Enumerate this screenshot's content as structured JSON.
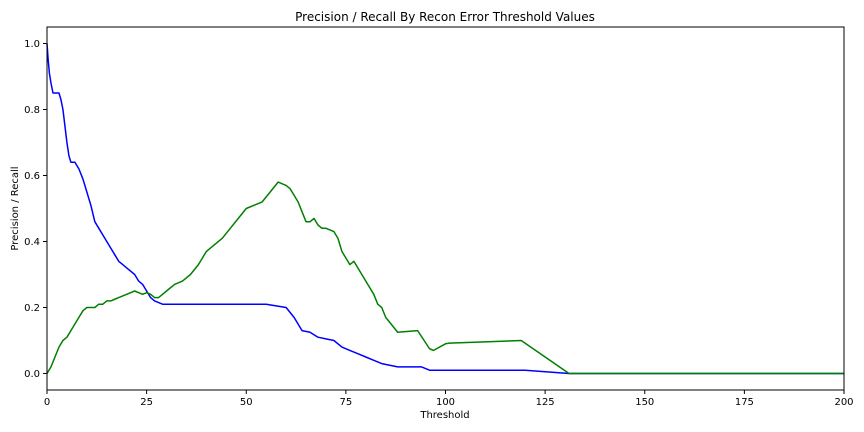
{
  "chart_data": {
    "type": "line",
    "title": "Precision / Recall  By Recon Error Threshold Values",
    "xlabel": "Threshold",
    "ylabel": "Precision / Recall",
    "xlim": [
      0,
      200
    ],
    "ylim": [
      -0.05,
      1.05
    ],
    "xticks": [
      0,
      25,
      50,
      75,
      100,
      125,
      150,
      175,
      200
    ],
    "yticks": [
      0.0,
      0.2,
      0.4,
      0.6,
      0.8,
      1.0
    ],
    "grid": false,
    "legend": "none",
    "series": [
      {
        "color": "#0000ff",
        "x": [
          0,
          0.3,
          0.6,
          1,
          1.5,
          2,
          3,
          3.5,
          4,
          4.5,
          5,
          5.5,
          6,
          7,
          8,
          9,
          10,
          11,
          12,
          13,
          14,
          15,
          16,
          17,
          18,
          19,
          20,
          21,
          22,
          23,
          24,
          25,
          26,
          27,
          28,
          29,
          30,
          40,
          50,
          55,
          60,
          62,
          64,
          66,
          68,
          70,
          72,
          74,
          76,
          78,
          80,
          82,
          84,
          88,
          94,
          96,
          100,
          120,
          131,
          200
        ],
        "y": [
          1.0,
          0.95,
          0.91,
          0.88,
          0.85,
          0.85,
          0.85,
          0.83,
          0.8,
          0.75,
          0.7,
          0.66,
          0.64,
          0.64,
          0.62,
          0.59,
          0.55,
          0.51,
          0.46,
          0.44,
          0.42,
          0.4,
          0.38,
          0.36,
          0.34,
          0.33,
          0.32,
          0.31,
          0.3,
          0.28,
          0.27,
          0.25,
          0.23,
          0.22,
          0.215,
          0.21,
          0.21,
          0.21,
          0.21,
          0.21,
          0.2,
          0.17,
          0.13,
          0.125,
          0.11,
          0.105,
          0.1,
          0.08,
          0.07,
          0.06,
          0.05,
          0.04,
          0.03,
          0.02,
          0.02,
          0.01,
          0.01,
          0.01,
          0.0,
          0.0
        ]
      },
      {
        "color": "#008000",
        "x": [
          0,
          1,
          2,
          3,
          4,
          5,
          6,
          7,
          8,
          9,
          10,
          11,
          12,
          13,
          14,
          15,
          16,
          17,
          18,
          19,
          20,
          21,
          22,
          23,
          24,
          25,
          26,
          27,
          28,
          29,
          30,
          32,
          34,
          36,
          38,
          40,
          42,
          44,
          46,
          48,
          50,
          52,
          54,
          56,
          58,
          60,
          61,
          62,
          63,
          64,
          65,
          66,
          67,
          68,
          69,
          70,
          72,
          73,
          74,
          75,
          76,
          77,
          78,
          80,
          82,
          83,
          84,
          85,
          88,
          93,
          96,
          97,
          100,
          101,
          119,
          131,
          200
        ],
        "y": [
          0.0,
          0.02,
          0.05,
          0.08,
          0.1,
          0.11,
          0.13,
          0.15,
          0.17,
          0.19,
          0.2,
          0.2,
          0.2,
          0.21,
          0.21,
          0.22,
          0.22,
          0.225,
          0.23,
          0.235,
          0.24,
          0.245,
          0.25,
          0.245,
          0.24,
          0.245,
          0.24,
          0.23,
          0.23,
          0.24,
          0.25,
          0.27,
          0.28,
          0.3,
          0.33,
          0.37,
          0.39,
          0.41,
          0.44,
          0.47,
          0.5,
          0.51,
          0.52,
          0.55,
          0.58,
          0.57,
          0.56,
          0.54,
          0.52,
          0.49,
          0.46,
          0.46,
          0.47,
          0.45,
          0.44,
          0.44,
          0.43,
          0.41,
          0.37,
          0.35,
          0.33,
          0.34,
          0.32,
          0.28,
          0.24,
          0.21,
          0.2,
          0.17,
          0.125,
          0.13,
          0.075,
          0.07,
          0.09,
          0.092,
          0.1,
          0.0,
          0.0
        ]
      }
    ]
  }
}
